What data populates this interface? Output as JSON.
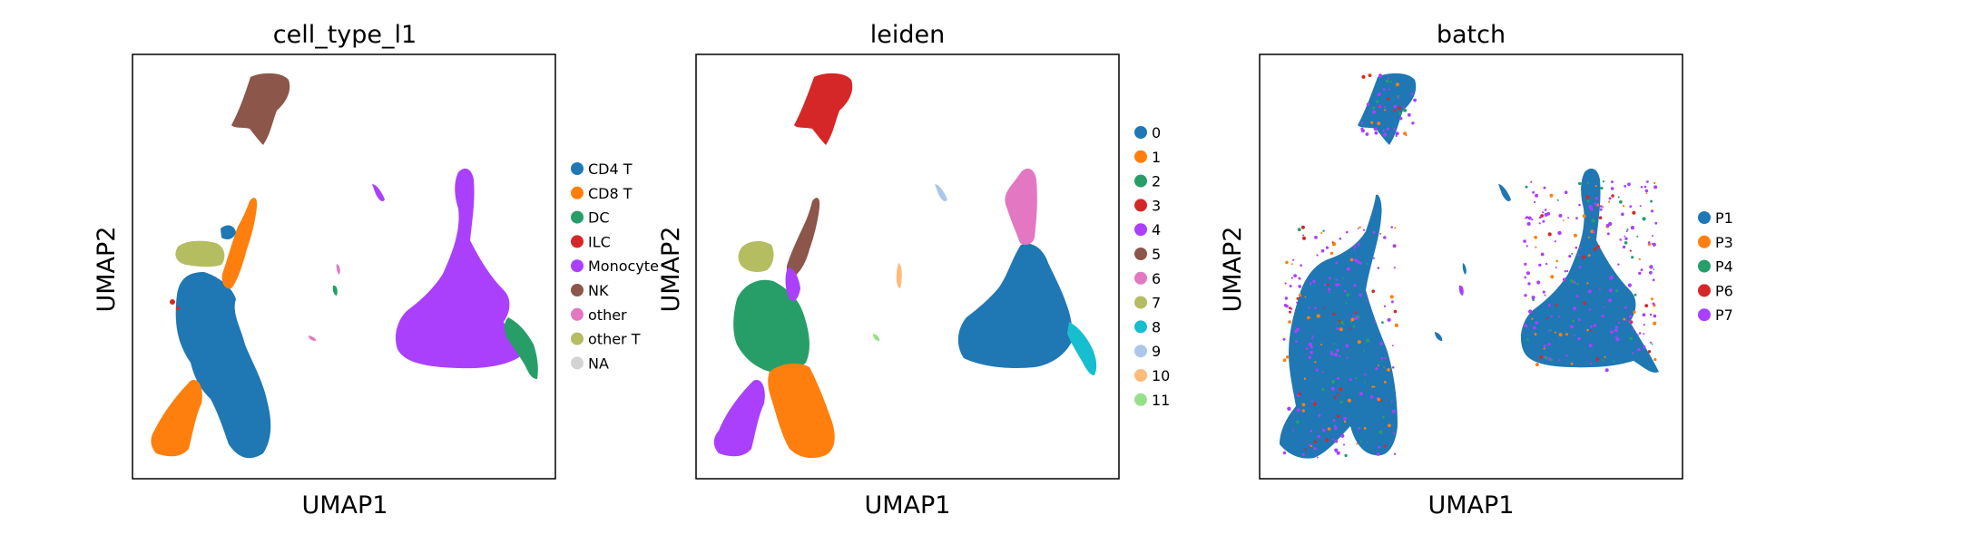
{
  "figure": {
    "panels": [
      {
        "title": "cell_type_l1",
        "xlabel": "UMAP1",
        "ylabel": "UMAP2",
        "legend": [
          {
            "label": "CD4 T",
            "color": "#1f77b4"
          },
          {
            "label": "CD8 T",
            "color": "#ff7f0e"
          },
          {
            "label": "DC",
            "color": "#279e68"
          },
          {
            "label": "ILC",
            "color": "#d62728"
          },
          {
            "label": "Monocyte",
            "color": "#aa40fc"
          },
          {
            "label": "NK",
            "color": "#8c564b"
          },
          {
            "label": "other",
            "color": "#e377c2"
          },
          {
            "label": "other T",
            "color": "#b5bd61"
          },
          {
            "label": "NA",
            "color": "#d3d3d3"
          }
        ]
      },
      {
        "title": "leiden",
        "xlabel": "UMAP1",
        "ylabel": "UMAP2",
        "legend": [
          {
            "label": "0",
            "color": "#1f77b4"
          },
          {
            "label": "1",
            "color": "#ff7f0e"
          },
          {
            "label": "2",
            "color": "#279e68"
          },
          {
            "label": "3",
            "color": "#d62728"
          },
          {
            "label": "4",
            "color": "#aa40fc"
          },
          {
            "label": "5",
            "color": "#8c564b"
          },
          {
            "label": "6",
            "color": "#e377c2"
          },
          {
            "label": "7",
            "color": "#b5bd61"
          },
          {
            "label": "8",
            "color": "#17becf"
          },
          {
            "label": "9",
            "color": "#aec7e8"
          },
          {
            "label": "10",
            "color": "#ffbb78"
          },
          {
            "label": "11",
            "color": "#98df8a"
          }
        ]
      },
      {
        "title": "batch",
        "xlabel": "UMAP1",
        "ylabel": "UMAP2",
        "legend": [
          {
            "label": "P1",
            "color": "#1f77b4"
          },
          {
            "label": "P3",
            "color": "#ff7f0e"
          },
          {
            "label": "P4",
            "color": "#279e68"
          },
          {
            "label": "P6",
            "color": "#d62728"
          },
          {
            "label": "P7",
            "color": "#aa40fc"
          }
        ]
      }
    ]
  },
  "chart_data": [
    {
      "type": "scatter",
      "title": "cell_type_l1",
      "xlabel": "UMAP1",
      "ylabel": "UMAP2",
      "ticks": "none",
      "grid": false,
      "legend_placement": "right",
      "series": [
        {
          "name": "CD4 T",
          "color": "#1f77b4",
          "regions": [
            "lower-left main mass",
            "small patch at upper-left cluster"
          ]
        },
        {
          "name": "CD8 T",
          "color": "#ff7f0e",
          "regions": [
            "bottom-left tip",
            "upper-center streak"
          ]
        },
        {
          "name": "DC",
          "color": "#279e68",
          "regions": [
            "lower-right tail of monocyte cluster",
            "tiny island at center"
          ]
        },
        {
          "name": "ILC",
          "color": "#d62728",
          "regions": [
            "sparse dots at left"
          ]
        },
        {
          "name": "Monocyte",
          "color": "#aa40fc",
          "regions": [
            "large right cluster",
            "small islands at center"
          ]
        },
        {
          "name": "NK",
          "color": "#8c564b",
          "regions": [
            "top cluster"
          ]
        },
        {
          "name": "other",
          "color": "#e377c2",
          "regions": [
            "tiny islands at center"
          ]
        },
        {
          "name": "other T",
          "color": "#b5bd61",
          "regions": [
            "upper-left band"
          ]
        },
        {
          "name": "NA",
          "color": "#d3d3d3",
          "regions": []
        }
      ]
    },
    {
      "type": "scatter",
      "title": "leiden",
      "xlabel": "UMAP1",
      "ylabel": "UMAP2",
      "ticks": "none",
      "grid": false,
      "legend_placement": "right",
      "series": [
        {
          "name": "0",
          "color": "#1f77b4",
          "regions": [
            "large right cluster"
          ]
        },
        {
          "name": "1",
          "color": "#ff7f0e",
          "regions": [
            "bottom-center lobe"
          ]
        },
        {
          "name": "2",
          "color": "#279e68",
          "regions": [
            "left-center mass"
          ]
        },
        {
          "name": "3",
          "color": "#d62728",
          "regions": [
            "top cluster"
          ]
        },
        {
          "name": "4",
          "color": "#aa40fc",
          "regions": [
            "bottom-left lobe",
            "small streak upper-center"
          ]
        },
        {
          "name": "5",
          "color": "#8c564b",
          "regions": [
            "upper streak"
          ]
        },
        {
          "name": "6",
          "color": "#e377c2",
          "regions": [
            "top of right cluster"
          ]
        },
        {
          "name": "7",
          "color": "#b5bd61",
          "regions": [
            "upper-left blob"
          ]
        },
        {
          "name": "8",
          "color": "#17becf",
          "regions": [
            "lower-right tail"
          ]
        },
        {
          "name": "9",
          "color": "#aec7e8",
          "regions": [
            "small island upper-center"
          ]
        },
        {
          "name": "10",
          "color": "#ffbb78",
          "regions": [
            "small island center"
          ]
        },
        {
          "name": "11",
          "color": "#98df8a",
          "regions": [
            "tiny island center-bottom"
          ]
        }
      ]
    },
    {
      "type": "scatter",
      "title": "batch",
      "xlabel": "UMAP1",
      "ylabel": "UMAP2",
      "ticks": "none",
      "grid": false,
      "legend_placement": "right",
      "series": [
        {
          "name": "P1",
          "color": "#1f77b4",
          "regions": [
            "all clusters, dominant"
          ]
        },
        {
          "name": "P3",
          "color": "#ff7f0e",
          "regions": [
            "scattered"
          ]
        },
        {
          "name": "P4",
          "color": "#279e68",
          "regions": [
            "scattered"
          ]
        },
        {
          "name": "P6",
          "color": "#d62728",
          "regions": [
            "scattered"
          ]
        },
        {
          "name": "P7",
          "color": "#aa40fc",
          "regions": [
            "scattered, denser on right cluster edges"
          ]
        }
      ]
    }
  ]
}
